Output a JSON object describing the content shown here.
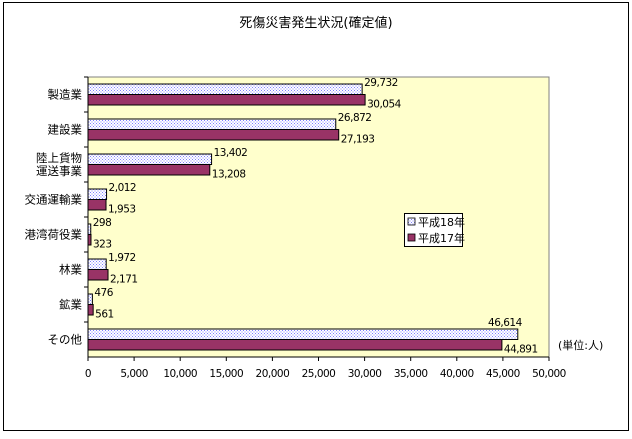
{
  "chart_data": {
    "type": "bar",
    "orientation": "horizontal",
    "title": "死傷災害発生状況(確定値)",
    "unit_label": "(単位:人)",
    "categories": [
      [
        "製造業"
      ],
      [
        "建設業"
      ],
      [
        "陸上貨物",
        "運送事業"
      ],
      [
        "交通運輸業"
      ],
      [
        "港湾荷役業"
      ],
      [
        "林業"
      ],
      [
        "鉱業"
      ],
      [
        "その他"
      ]
    ],
    "series": [
      {
        "name": "平成18年",
        "color": "#CCCCFF",
        "pattern": "dotted",
        "values": [
          29732,
          26872,
          13402,
          2012,
          298,
          1972,
          476,
          46614
        ],
        "labels": [
          "29,732",
          "26,872",
          "13,402",
          "2,012",
          "298",
          "1,972",
          "476",
          "46,614"
        ]
      },
      {
        "name": "平成17年",
        "color": "#993366",
        "pattern": "solid",
        "values": [
          30054,
          27193,
          13208,
          1953,
          323,
          2171,
          561,
          44891
        ],
        "labels": [
          "30,054",
          "27,193",
          "13,208",
          "1,953",
          "323",
          "2,171",
          "561",
          "44,891"
        ]
      }
    ],
    "xlim": [
      0,
      50000
    ],
    "xticks": [
      "0",
      "5,000",
      "10,000",
      "15,000",
      "20,000",
      "25,000",
      "30,000",
      "35,000",
      "40,000",
      "45,000",
      "50,000"
    ],
    "grid": false,
    "legend_placement": "right-center",
    "plot_background": "#FFFFCC"
  }
}
